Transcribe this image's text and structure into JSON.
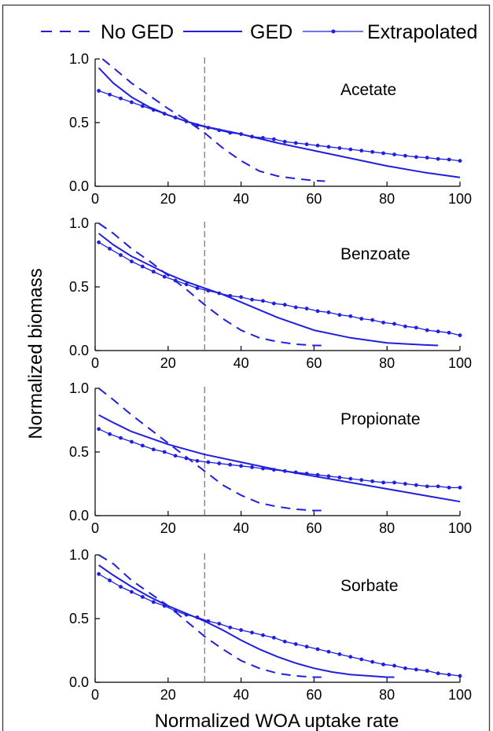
{
  "legend": [
    {
      "label": "No GED",
      "style": "dashed"
    },
    {
      "label": "GED",
      "style": "solid"
    },
    {
      "label": "Extrapolated",
      "style": "dotted-line"
    }
  ],
  "colors": {
    "series": "#1f1fdf",
    "axis": "#000000",
    "threshold": "#555555"
  },
  "chart_data": [
    {
      "type": "line",
      "annotation": "Acetate",
      "xlabel": "Normalized WOA uptake rate",
      "ylabel": "Normalized biomass",
      "xlim": [
        0,
        100
      ],
      "ylim": [
        0,
        1
      ],
      "xticks": [
        "0",
        "20",
        "40",
        "60",
        "80",
        "100"
      ],
      "yticks": [
        "0.0",
        "0.5",
        "1.0"
      ],
      "threshold_x": 30,
      "legend_position": "top",
      "series": [
        {
          "name": "No GED",
          "x": [
            2,
            5,
            10,
            15,
            20,
            25,
            30,
            35,
            40,
            45,
            50,
            55,
            60,
            63
          ],
          "y": [
            1.0,
            0.93,
            0.81,
            0.71,
            0.61,
            0.52,
            0.42,
            0.3,
            0.2,
            0.12,
            0.08,
            0.06,
            0.045,
            0.04
          ]
        },
        {
          "name": "GED",
          "x": [
            1,
            5,
            10,
            15,
            20,
            25,
            30,
            40,
            50,
            60,
            70,
            80,
            90,
            100
          ],
          "y": [
            0.93,
            0.81,
            0.7,
            0.62,
            0.56,
            0.51,
            0.47,
            0.41,
            0.34,
            0.28,
            0.22,
            0.16,
            0.11,
            0.07
          ]
        },
        {
          "name": "Extrapolated",
          "x": [
            1,
            4,
            7,
            10,
            13,
            16,
            19,
            22,
            25,
            28,
            31,
            34,
            37,
            40,
            43,
            46,
            49,
            52,
            55,
            58,
            61,
            64,
            67,
            70,
            73,
            76,
            79,
            82,
            85,
            88,
            91,
            94,
            97,
            100
          ],
          "y": [
            0.75,
            0.72,
            0.69,
            0.66,
            0.63,
            0.6,
            0.57,
            0.54,
            0.51,
            0.48,
            0.46,
            0.44,
            0.42,
            0.41,
            0.39,
            0.38,
            0.37,
            0.35,
            0.34,
            0.33,
            0.32,
            0.31,
            0.3,
            0.29,
            0.28,
            0.27,
            0.26,
            0.25,
            0.24,
            0.23,
            0.225,
            0.215,
            0.21,
            0.2
          ]
        }
      ]
    },
    {
      "type": "line",
      "annotation": "Benzoate",
      "xlim": [
        0,
        100
      ],
      "ylim": [
        0,
        1
      ],
      "xticks": [
        "0",
        "20",
        "40",
        "60",
        "80",
        "100"
      ],
      "yticks": [
        "0.0",
        "0.5",
        "1.0"
      ],
      "threshold_x": 30,
      "series": [
        {
          "name": "No GED",
          "x": [
            1,
            5,
            10,
            15,
            20,
            25,
            30,
            35,
            40,
            45,
            50,
            55,
            60,
            62
          ],
          "y": [
            1.0,
            0.92,
            0.8,
            0.7,
            0.59,
            0.48,
            0.36,
            0.25,
            0.16,
            0.1,
            0.07,
            0.05,
            0.04,
            0.04
          ]
        },
        {
          "name": "GED",
          "x": [
            1,
            5,
            10,
            15,
            20,
            25,
            30,
            35,
            40,
            50,
            60,
            70,
            80,
            90,
            94
          ],
          "y": [
            0.92,
            0.83,
            0.74,
            0.67,
            0.6,
            0.54,
            0.49,
            0.44,
            0.38,
            0.26,
            0.16,
            0.1,
            0.06,
            0.045,
            0.04
          ]
        },
        {
          "name": "Extrapolated",
          "x": [
            1,
            4,
            7,
            10,
            13,
            16,
            19,
            22,
            25,
            28,
            31,
            34,
            37,
            40,
            43,
            46,
            49,
            52,
            55,
            58,
            61,
            64,
            67,
            70,
            73,
            76,
            79,
            82,
            85,
            88,
            91,
            94,
            97,
            100
          ],
          "y": [
            0.85,
            0.8,
            0.75,
            0.7,
            0.66,
            0.62,
            0.58,
            0.55,
            0.52,
            0.49,
            0.47,
            0.45,
            0.43,
            0.42,
            0.4,
            0.39,
            0.37,
            0.36,
            0.34,
            0.33,
            0.31,
            0.3,
            0.28,
            0.27,
            0.25,
            0.24,
            0.22,
            0.21,
            0.19,
            0.18,
            0.16,
            0.15,
            0.14,
            0.12
          ]
        }
      ]
    },
    {
      "type": "line",
      "annotation": "Propionate",
      "xlim": [
        0,
        100
      ],
      "ylim": [
        0,
        1
      ],
      "xticks": [
        "0",
        "20",
        "40",
        "60",
        "80",
        "100"
      ],
      "yticks": [
        "0.0",
        "0.5",
        "1.0"
      ],
      "threshold_x": 30,
      "series": [
        {
          "name": "No GED",
          "x": [
            1,
            5,
            10,
            15,
            20,
            25,
            30,
            35,
            40,
            45,
            50,
            55,
            60,
            62
          ],
          "y": [
            1.0,
            0.91,
            0.79,
            0.68,
            0.57,
            0.46,
            0.35,
            0.24,
            0.16,
            0.1,
            0.07,
            0.05,
            0.04,
            0.04
          ]
        },
        {
          "name": "GED",
          "x": [
            1,
            5,
            10,
            15,
            20,
            25,
            30,
            40,
            50,
            60,
            70,
            80,
            90,
            100
          ],
          "y": [
            0.79,
            0.73,
            0.66,
            0.61,
            0.56,
            0.52,
            0.48,
            0.42,
            0.36,
            0.31,
            0.26,
            0.21,
            0.16,
            0.11
          ]
        },
        {
          "name": "Extrapolated",
          "x": [
            1,
            4,
            7,
            10,
            13,
            16,
            19,
            22,
            25,
            28,
            31,
            34,
            37,
            40,
            43,
            46,
            49,
            52,
            55,
            58,
            61,
            64,
            67,
            70,
            73,
            76,
            79,
            82,
            85,
            88,
            91,
            94,
            97,
            100
          ],
          "y": [
            0.68,
            0.64,
            0.61,
            0.58,
            0.55,
            0.52,
            0.5,
            0.47,
            0.45,
            0.43,
            0.42,
            0.41,
            0.4,
            0.39,
            0.38,
            0.37,
            0.36,
            0.35,
            0.34,
            0.33,
            0.32,
            0.31,
            0.3,
            0.29,
            0.28,
            0.27,
            0.26,
            0.26,
            0.25,
            0.24,
            0.23,
            0.23,
            0.22,
            0.22
          ]
        }
      ]
    },
    {
      "type": "line",
      "annotation": "Sorbate",
      "xlim": [
        0,
        100
      ],
      "ylim": [
        0,
        1
      ],
      "xticks": [
        "0",
        "20",
        "40",
        "60",
        "80",
        "100"
      ],
      "yticks": [
        "0.0",
        "0.5",
        "1.0"
      ],
      "threshold_x": 30,
      "series": [
        {
          "name": "No GED",
          "x": [
            1,
            5,
            10,
            15,
            20,
            25,
            30,
            35,
            40,
            45,
            50,
            55,
            60,
            62
          ],
          "y": [
            1.0,
            0.93,
            0.8,
            0.7,
            0.6,
            0.48,
            0.36,
            0.26,
            0.17,
            0.11,
            0.07,
            0.05,
            0.04,
            0.04
          ]
        },
        {
          "name": "GED",
          "x": [
            1,
            5,
            10,
            15,
            20,
            25,
            30,
            35,
            40,
            45,
            50,
            55,
            60,
            65,
            70,
            75,
            80,
            82
          ],
          "y": [
            0.92,
            0.84,
            0.75,
            0.67,
            0.6,
            0.54,
            0.48,
            0.41,
            0.33,
            0.26,
            0.2,
            0.15,
            0.11,
            0.08,
            0.06,
            0.05,
            0.04,
            0.04
          ]
        },
        {
          "name": "Extrapolated",
          "x": [
            1,
            4,
            7,
            10,
            13,
            16,
            19,
            22,
            25,
            28,
            31,
            34,
            37,
            40,
            43,
            46,
            49,
            52,
            55,
            58,
            61,
            64,
            67,
            70,
            73,
            76,
            79,
            82,
            85,
            88,
            91,
            94,
            97,
            100
          ],
          "y": [
            0.85,
            0.8,
            0.75,
            0.71,
            0.67,
            0.63,
            0.6,
            0.56,
            0.53,
            0.51,
            0.48,
            0.46,
            0.43,
            0.41,
            0.39,
            0.37,
            0.35,
            0.32,
            0.3,
            0.28,
            0.26,
            0.24,
            0.22,
            0.2,
            0.18,
            0.16,
            0.14,
            0.13,
            0.11,
            0.1,
            0.09,
            0.07,
            0.06,
            0.05
          ]
        }
      ]
    }
  ]
}
